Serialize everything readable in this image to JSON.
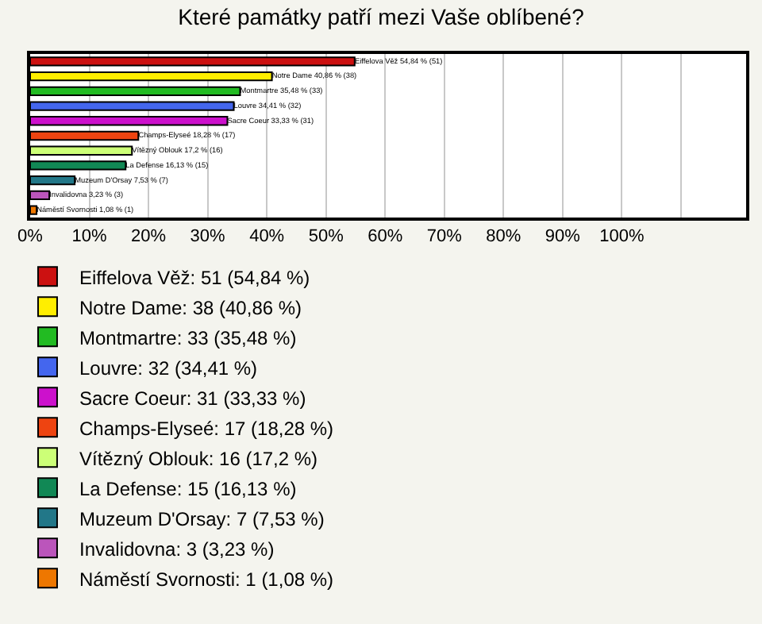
{
  "chart_data": {
    "type": "bar",
    "orientation": "horizontal",
    "title": "Které památky patří mezi Vaše oblíbené?",
    "categories": [
      null,
      null,
      null,
      null,
      null,
      null,
      null,
      null,
      null,
      null,
      null
    ],
    "series": [
      {
        "name": "Eiffelova Věž: 51 (54,84 %)",
        "color": "#cc1111",
        "values": [
          54.84,
          null,
          null,
          null,
          null,
          null,
          null,
          null,
          null,
          null,
          null
        ],
        "value_labels": [
          "Eiffelova Věž 54,84 % (51)",
          null,
          null,
          null,
          null,
          null,
          null,
          null,
          null,
          null,
          null
        ]
      },
      {
        "name": "Notre Dame: 38 (40,86 %)",
        "color": "#ffee00",
        "values": [
          null,
          40.86,
          null,
          null,
          null,
          null,
          null,
          null,
          null,
          null,
          null
        ],
        "value_labels": [
          null,
          "Notre Dame 40,86 % (38)",
          null,
          null,
          null,
          null,
          null,
          null,
          null,
          null,
          null
        ]
      },
      {
        "name": "Montmartre: 33 (35,48 %)",
        "color": "#22bb22",
        "values": [
          null,
          null,
          35.48,
          null,
          null,
          null,
          null,
          null,
          null,
          null,
          null
        ],
        "value_labels": [
          null,
          null,
          "Montmartre 35,48 % (33)",
          null,
          null,
          null,
          null,
          null,
          null,
          null,
          null
        ]
      },
      {
        "name": "Louvre: 32 (34,41 %)",
        "color": "#4466ee",
        "values": [
          null,
          null,
          null,
          34.41,
          null,
          null,
          null,
          null,
          null,
          null,
          null
        ],
        "value_labels": [
          null,
          null,
          null,
          "Louvre 34,41 % (32)",
          null,
          null,
          null,
          null,
          null,
          null,
          null
        ]
      },
      {
        "name": "Sacre Coeur: 31 (33,33 %)",
        "color": "#cc11cc",
        "values": [
          null,
          null,
          null,
          null,
          33.33,
          null,
          null,
          null,
          null,
          null,
          null
        ],
        "value_labels": [
          null,
          null,
          null,
          null,
          "Sacre Coeur 33,33 % (31)",
          null,
          null,
          null,
          null,
          null,
          null
        ]
      },
      {
        "name": "Champs-Elyseé: 17 (18,28 %)",
        "color": "#ee4411",
        "values": [
          null,
          null,
          null,
          null,
          null,
          18.28,
          null,
          null,
          null,
          null,
          null
        ],
        "value_labels": [
          null,
          null,
          null,
          null,
          null,
          "Champs-Elyseé 18,28 % (17)",
          null,
          null,
          null,
          null,
          null
        ]
      },
      {
        "name": "Vítězný Oblouk: 16 (17,2 %)",
        "color": "#ccff77",
        "values": [
          null,
          null,
          null,
          null,
          null,
          null,
          17.2,
          null,
          null,
          null,
          null
        ],
        "value_labels": [
          null,
          null,
          null,
          null,
          null,
          null,
          "Vítězný Oblouk 17,2 % (16)",
          null,
          null,
          null,
          null
        ]
      },
      {
        "name": "La Defense: 15 (16,13 %)",
        "color": "#118855",
        "values": [
          null,
          null,
          null,
          null,
          null,
          null,
          null,
          16.13,
          null,
          null,
          null
        ],
        "value_labels": [
          null,
          null,
          null,
          null,
          null,
          null,
          null,
          "La Defense 16,13 % (15)",
          null,
          null,
          null
        ]
      },
      {
        "name": "Muzeum D'Orsay: 7 (7,53 %)",
        "color": "#227788",
        "values": [
          null,
          null,
          null,
          null,
          null,
          null,
          null,
          null,
          7.53,
          null,
          null
        ],
        "value_labels": [
          null,
          null,
          null,
          null,
          null,
          null,
          null,
          null,
          "Muzeum D'Orsay 7,53 % (7)",
          null,
          null
        ]
      },
      {
        "name": "Invalidovna: 3 (3,23 %)",
        "color": "#bb55bb",
        "values": [
          null,
          null,
          null,
          null,
          null,
          null,
          null,
          null,
          null,
          3.23,
          null
        ],
        "value_labels": [
          null,
          null,
          null,
          null,
          null,
          null,
          null,
          null,
          null,
          "Invalidovna 3,23 % (3)",
          null
        ]
      },
      {
        "name": "Náměstí Svornosti: 1 (1,08 %)",
        "color": "#ee7700",
        "values": [
          null,
          null,
          null,
          null,
          null,
          null,
          null,
          null,
          null,
          null,
          1.08
        ],
        "value_labels": [
          null,
          null,
          null,
          null,
          null,
          null,
          null,
          null,
          null,
          null,
          "Náměstí Svornosti 1,08 % (1)"
        ]
      }
    ],
    "xlim": [
      0,
      121
    ],
    "xticks": [
      {
        "value": 0,
        "label": "0%"
      },
      {
        "value": 10,
        "label": "10%"
      },
      {
        "value": 20,
        "label": "20%"
      },
      {
        "value": 30,
        "label": "30%"
      },
      {
        "value": 40,
        "label": "40%"
      },
      {
        "value": 50,
        "label": "50%"
      },
      {
        "value": 60,
        "label": "60%"
      },
      {
        "value": 70,
        "label": "70%"
      },
      {
        "value": 80,
        "label": "80%"
      },
      {
        "value": 90,
        "label": "90%"
      },
      {
        "value": 100,
        "label": "100%"
      },
      {
        "value": 110,
        "label": null
      }
    ],
    "grid": "x",
    "legend": "bottom",
    "tick_labels": "x"
  }
}
